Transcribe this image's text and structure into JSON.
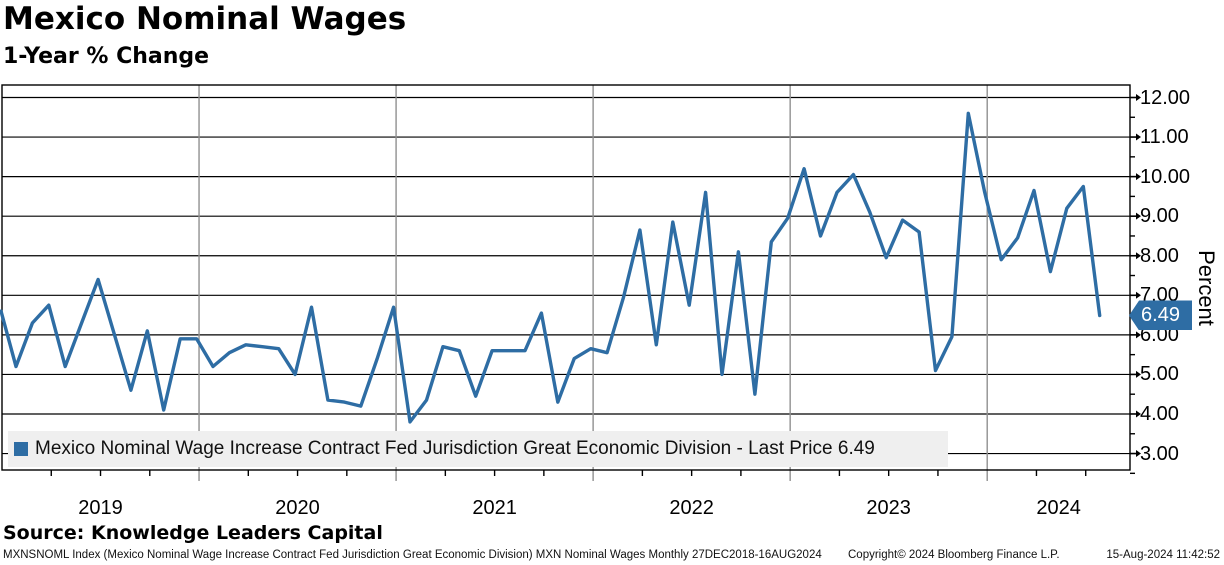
{
  "title": "Mexico Nominal Wages",
  "subtitle": "1-Year % Change",
  "legend": {
    "label": "Mexico Nominal Wage Increase Contract Fed Jurisdiction Great Economic Division - Last Price 6.49",
    "marker_color": "#2e6da4"
  },
  "y_axis": {
    "title": "Percent",
    "last_price_label": "6.49"
  },
  "source": "Source: Knowledge Leaders Capital",
  "footer": {
    "left": "MXNSNOML Index (Mexico Nominal Wage Increase Contract Fed Jurisdiction Great Economic Division) MXN Nominal Wages  Monthly 27DEC2018-16AUG2024",
    "center": "Copyright© 2024 Bloomberg Finance L.P.",
    "right": "15-Aug-2024 11:42:52"
  },
  "chart_data": {
    "type": "line",
    "title": "Mexico Nominal Wages — 1-Year % Change",
    "series_name": "MXNSNOML Index (Mexico Nominal Wage Increase Contract Fed Jurisdiction Great Economic Division)",
    "frequency": "Monthly",
    "period": "27DEC2018-16AUG2024",
    "last_price": 6.49,
    "line_color": "#2e6da4",
    "grid_color_h": "#000000",
    "grid_color_v": "#909090",
    "ylabel": "Percent",
    "ylim": [
      2.6,
      12.3
    ],
    "y_ticks": [
      12.0,
      11.0,
      10.0,
      9.0,
      8.0,
      7.0,
      6.0,
      5.0,
      4.0,
      3.0
    ],
    "x_labels": [
      "2019",
      "2020",
      "2021",
      "2022",
      "2023",
      "2024"
    ],
    "months": [
      "2018-12",
      "2019-01",
      "2019-02",
      "2019-03",
      "2019-04",
      "2019-05",
      "2019-06",
      "2019-07",
      "2019-08",
      "2019-09",
      "2019-10",
      "2019-11",
      "2019-12",
      "2020-01",
      "2020-02",
      "2020-03",
      "2020-04",
      "2020-05",
      "2020-06",
      "2020-07",
      "2020-08",
      "2020-09",
      "2020-10",
      "2020-11",
      "2020-12",
      "2021-01",
      "2021-02",
      "2021-03",
      "2021-04",
      "2021-05",
      "2021-06",
      "2021-07",
      "2021-08",
      "2021-09",
      "2021-10",
      "2021-11",
      "2021-12",
      "2022-01",
      "2022-02",
      "2022-03",
      "2022-04",
      "2022-05",
      "2022-06",
      "2022-07",
      "2022-08",
      "2022-09",
      "2022-10",
      "2022-11",
      "2022-12",
      "2023-01",
      "2023-02",
      "2023-03",
      "2023-04",
      "2023-05",
      "2023-06",
      "2023-07",
      "2023-08",
      "2023-09",
      "2023-10",
      "2023-11",
      "2023-12",
      "2024-01",
      "2024-02",
      "2024-03",
      "2024-04",
      "2024-05",
      "2024-06",
      "2024-07"
    ],
    "values": [
      6.6,
      5.2,
      6.3,
      6.75,
      5.2,
      6.3,
      7.4,
      6.0,
      4.6,
      6.1,
      4.1,
      5.9,
      5.9,
      5.2,
      5.55,
      5.75,
      5.7,
      5.65,
      5.0,
      6.7,
      4.35,
      4.3,
      4.2,
      5.4,
      6.7,
      3.8,
      4.35,
      5.7,
      5.6,
      4.45,
      5.6,
      5.6,
      5.6,
      6.55,
      4.3,
      5.4,
      5.65,
      5.55,
      6.95,
      8.65,
      5.75,
      8.85,
      6.75,
      9.6,
      5.0,
      8.1,
      4.5,
      8.35,
      8.95,
      10.2,
      8.5,
      9.6,
      10.05,
      9.1,
      7.95,
      8.9,
      8.6,
      5.1,
      5.95,
      11.6,
      9.6,
      7.9,
      8.45,
      9.65,
      7.6,
      9.2,
      9.75,
      6.49
    ],
    "legend_position": "bottom-left",
    "grid": true
  }
}
